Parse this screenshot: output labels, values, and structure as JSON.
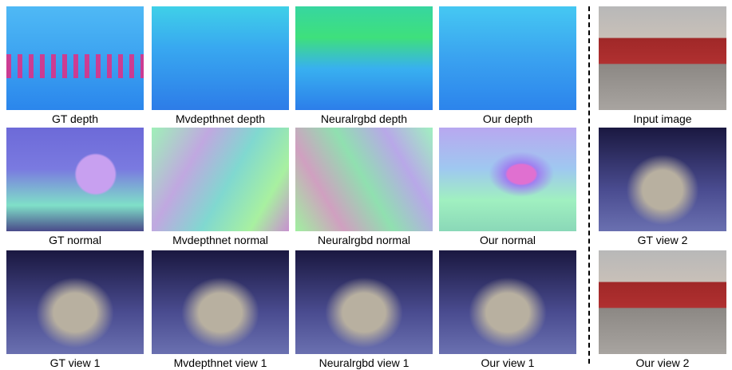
{
  "figure": {
    "grid": [
      [
        "GT depth",
        "Mvdepthnet depth",
        "Neuralrgbd depth",
        "Our depth"
      ],
      [
        "GT normal",
        "Mvdepthnet normal",
        "Neuralrgbd normal",
        "Our normal"
      ],
      [
        "GT view 1",
        "Mvdepthnet view 1",
        "Neuralrgbd view 1",
        "Our view 1"
      ]
    ],
    "side": [
      "Input image",
      "GT view 2",
      "Our view 2"
    ]
  }
}
